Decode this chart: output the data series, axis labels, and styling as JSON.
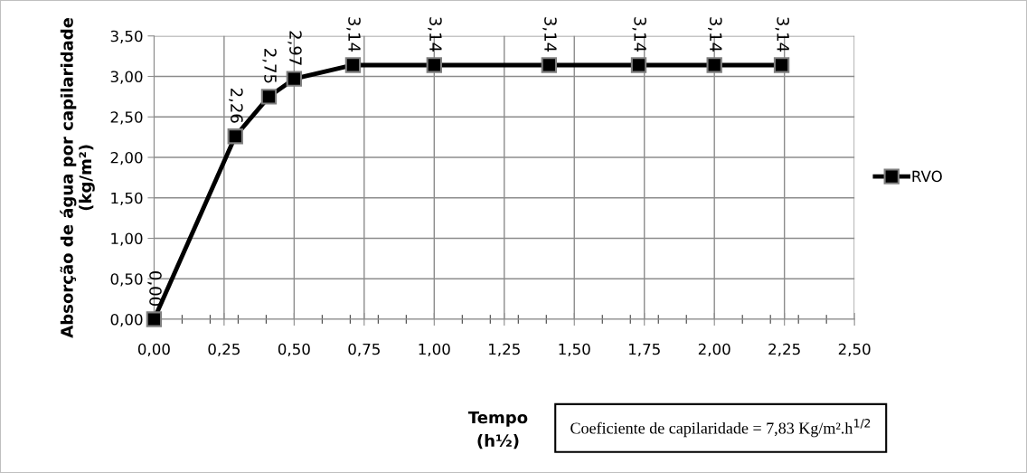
{
  "chart_data": {
    "type": "line",
    "xlabel": "Tempo\n(h½)",
    "ylabel": "Absorção de água por capilaridade\n(kg/m²)",
    "x": [
      0,
      0.29,
      0.41,
      0.5,
      0.71,
      1.0,
      1.41,
      1.73,
      2.0,
      2.24
    ],
    "series": [
      {
        "name": "RVO",
        "color": "#000000",
        "values": [
          0.0,
          2.26,
          2.75,
          2.97,
          3.14,
          3.14,
          3.14,
          3.14,
          3.14,
          3.14
        ],
        "value_labels": [
          "0,00",
          "2,26",
          "2,75",
          "2,97",
          "3,14",
          "3,14",
          "3,14",
          "3,14",
          "3,14",
          "3,14"
        ]
      }
    ],
    "xlim": [
      0,
      2.5
    ],
    "xticks": [
      {
        "value": 0,
        "label": "0,00"
      },
      {
        "value": 0.1,
        "label": null
      },
      {
        "value": 0.2,
        "label": null
      },
      {
        "value": 0.25,
        "label": "0,25"
      },
      {
        "value": 0.3,
        "label": null
      },
      {
        "value": 0.4,
        "label": null
      },
      {
        "value": 0.5,
        "label": "0,50"
      },
      {
        "value": 0.6,
        "label": null
      },
      {
        "value": 0.7,
        "label": null
      },
      {
        "value": 0.75,
        "label": "0,75"
      },
      {
        "value": 0.8,
        "label": null
      },
      {
        "value": 0.9,
        "label": null
      },
      {
        "value": 1.0,
        "label": "1,00"
      },
      {
        "value": 1.1,
        "label": null
      },
      {
        "value": 1.2,
        "label": null
      },
      {
        "value": 1.25,
        "label": "1,25"
      },
      {
        "value": 1.3,
        "label": null
      },
      {
        "value": 1.4,
        "label": null
      },
      {
        "value": 1.5,
        "label": "1,50"
      },
      {
        "value": 1.6,
        "label": null
      },
      {
        "value": 1.7,
        "label": null
      },
      {
        "value": 1.75,
        "label": "1,75"
      },
      {
        "value": 1.8,
        "label": null
      },
      {
        "value": 1.9,
        "label": null
      },
      {
        "value": 2.0,
        "label": "2,00"
      },
      {
        "value": 2.1,
        "label": null
      },
      {
        "value": 2.2,
        "label": null
      },
      {
        "value": 2.25,
        "label": "2,25"
      },
      {
        "value": 2.3,
        "label": null
      },
      {
        "value": 2.4,
        "label": null
      },
      {
        "value": 2.5,
        "label": "2,50"
      }
    ],
    "ylim": [
      0,
      3.5
    ],
    "yticks": [
      {
        "value": 0,
        "label": "0,00"
      },
      {
        "value": 0.5,
        "label": "0,50"
      },
      {
        "value": 1.0,
        "label": "1,00"
      },
      {
        "value": 1.5,
        "label": "1,50"
      },
      {
        "value": 2.0,
        "label": "2,00"
      },
      {
        "value": 2.5,
        "label": "2,50"
      },
      {
        "value": 3.0,
        "label": "3,00"
      },
      {
        "value": 3.5,
        "label": "3,50"
      }
    ],
    "grid": true,
    "legend": "right",
    "marker": "square",
    "line_style": "solid",
    "annotations": [
      "Coeficiente de capilaridade = 7,83 Kg/m².h$^{1/2}$"
    ]
  }
}
